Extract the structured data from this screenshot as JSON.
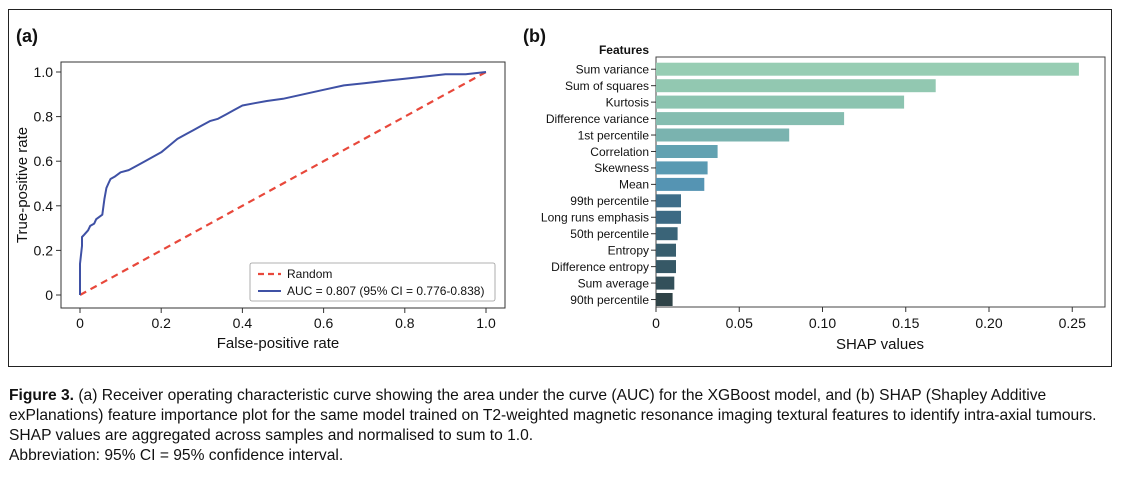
{
  "panels": {
    "a": {
      "label": "(a)"
    },
    "b": {
      "label": "(b)"
    }
  },
  "chart_data": [
    {
      "type": "line",
      "panel": "(a)",
      "xlabel": "False-positive rate",
      "ylabel": "True-positive rate",
      "xlim": [
        0,
        1
      ],
      "ylim": [
        0,
        1
      ],
      "xticks": [
        "0",
        "0.2",
        "0.4",
        "0.6",
        "0.8",
        "1.0"
      ],
      "yticks": [
        "0",
        "0.2",
        "0.4",
        "0.6",
        "0.8",
        "1.0"
      ],
      "grid": false,
      "legend_position": "bottom-right",
      "series": [
        {
          "name": "Random",
          "style": "dashed",
          "color": "#e8483b",
          "x": [
            0,
            1
          ],
          "y": [
            0,
            1
          ]
        },
        {
          "name": "AUC = 0.807 (95% CI = 0.776-0.838)",
          "style": "solid",
          "color": "#3f51a5",
          "x": [
            0,
            0,
            0.005,
            0.005,
            0.01,
            0.02,
            0.025,
            0.035,
            0.04,
            0.055,
            0.06,
            0.065,
            0.07,
            0.075,
            0.085,
            0.1,
            0.12,
            0.14,
            0.16,
            0.18,
            0.2,
            0.22,
            0.24,
            0.26,
            0.28,
            0.3,
            0.32,
            0.34,
            0.36,
            0.38,
            0.4,
            0.43,
            0.46,
            0.5,
            0.55,
            0.6,
            0.65,
            0.7,
            0.75,
            0.8,
            0.85,
            0.9,
            0.95,
            1.0
          ],
          "y": [
            0,
            0.14,
            0.22,
            0.26,
            0.27,
            0.29,
            0.31,
            0.32,
            0.34,
            0.36,
            0.43,
            0.48,
            0.5,
            0.52,
            0.53,
            0.55,
            0.56,
            0.58,
            0.6,
            0.62,
            0.64,
            0.67,
            0.7,
            0.72,
            0.74,
            0.76,
            0.78,
            0.79,
            0.81,
            0.83,
            0.85,
            0.86,
            0.87,
            0.88,
            0.9,
            0.92,
            0.94,
            0.95,
            0.96,
            0.97,
            0.98,
            0.99,
            0.99,
            1.0
          ]
        }
      ]
    },
    {
      "type": "bar",
      "panel": "(b)",
      "orientation": "horizontal",
      "category_header": "Features",
      "xlabel": "SHAP values",
      "xlim": [
        0,
        0.26
      ],
      "xticks": [
        "0",
        "0.05",
        "0.10",
        "0.15",
        "0.20",
        "0.25"
      ],
      "grid": false,
      "categories": [
        "Sum variance",
        "Sum of squares",
        "Kurtosis",
        "Difference variance",
        "1st percentile",
        "Correlation",
        "Skewness",
        "Mean",
        "99th percentile",
        "Long runs emphasis",
        "50th percentile",
        "Entropy",
        "Difference entropy",
        "Sum average",
        "90th percentile"
      ],
      "values": [
        0.254,
        0.168,
        0.149,
        0.113,
        0.08,
        0.037,
        0.031,
        0.029,
        0.015,
        0.015,
        0.013,
        0.012,
        0.012,
        0.011,
        0.01
      ],
      "colors": [
        "#97cdb3",
        "#92c8b1",
        "#8cc4b0",
        "#85bdb0",
        "#7ab3af",
        "#62a2b1",
        "#5a9ab2",
        "#5594b3",
        "#3f6e89",
        "#3d6a84",
        "#3a6478",
        "#385e6e",
        "#365866",
        "#33505a",
        "#2f4347"
      ]
    }
  ],
  "caption": {
    "label": "Figure 3.",
    "text": " (a) Receiver operating characteristic curve showing the area under the curve (AUC) for the XGBoost model, and (b) SHAP (Shapley Additive exPlanations) feature importance plot for the same model trained on T2-weighted magnetic resonance imaging textural features to identify intra-axial tumours. SHAP values are aggregated across samples and normalised to sum to 1.0.",
    "abbreviation": "Abbreviation: 95% CI = 95% confidence interval."
  }
}
